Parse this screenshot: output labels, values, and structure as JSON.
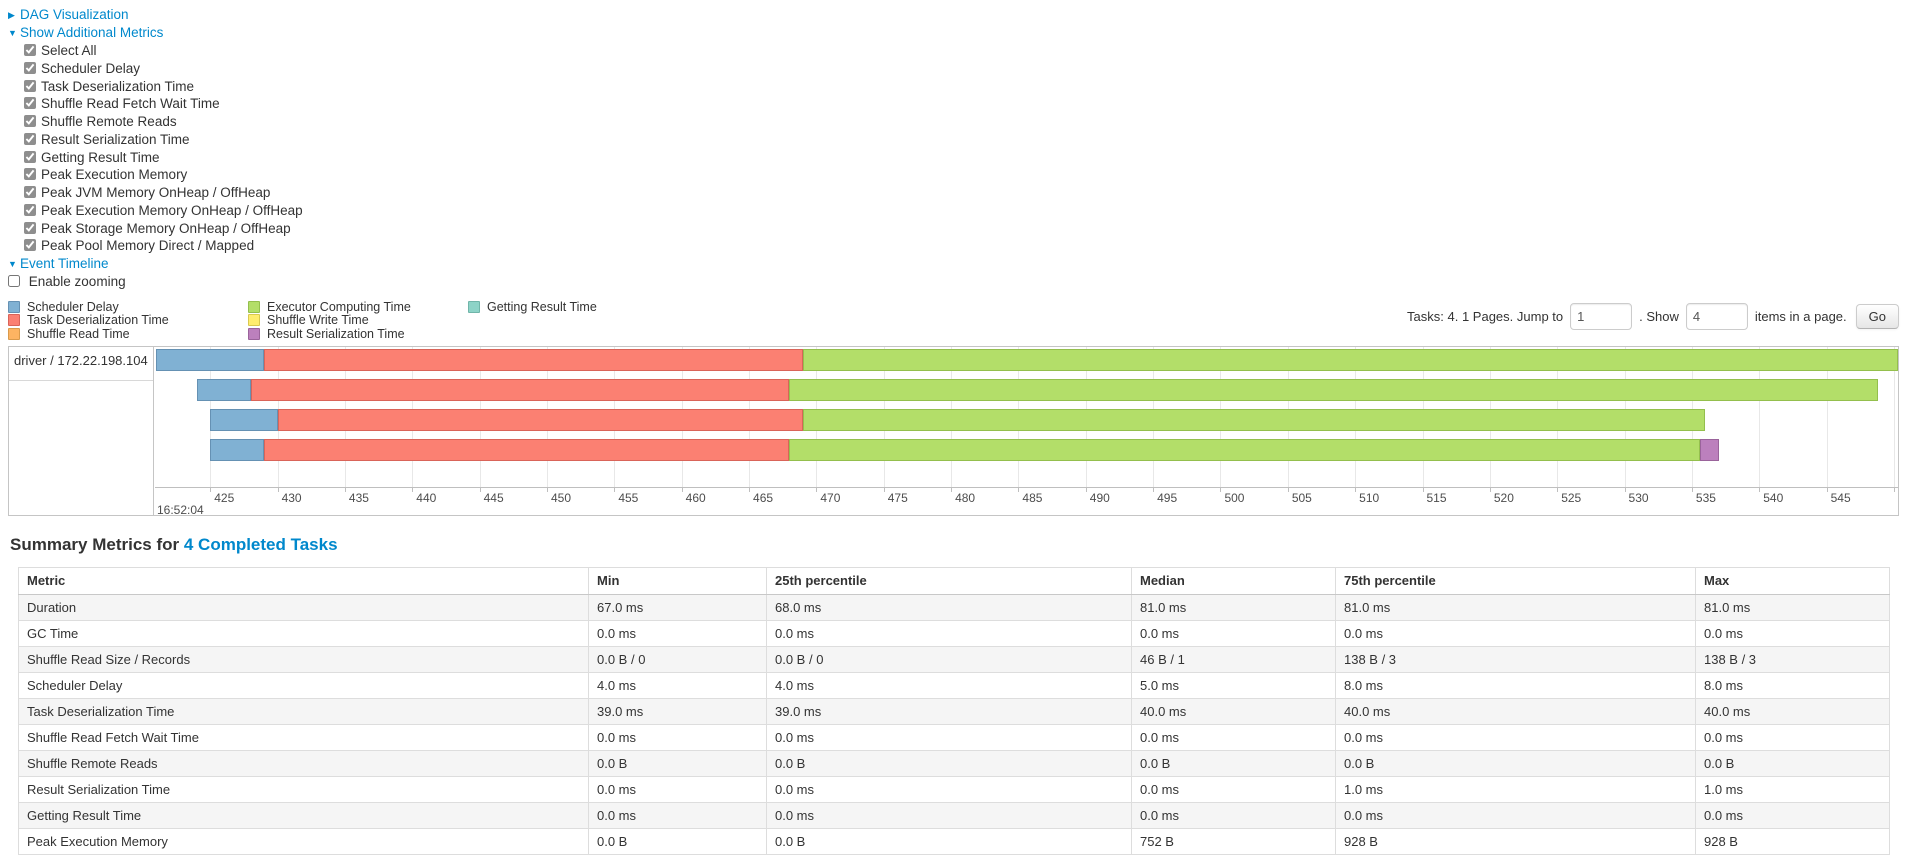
{
  "sections": {
    "dag_label": "DAG Visualization",
    "metrics_label": "Show Additional Metrics",
    "metric_checkboxes": [
      "Select All",
      "Scheduler Delay",
      "Task Deserialization Time",
      "Shuffle Read Fetch Wait Time",
      "Shuffle Remote Reads",
      "Result Serialization Time",
      "Getting Result Time",
      "Peak Execution Memory",
      "Peak JVM Memory OnHeap / OffHeap",
      "Peak Execution Memory OnHeap / OffHeap",
      "Peak Storage Memory OnHeap / OffHeap",
      "Peak Pool Memory Direct / Mapped"
    ],
    "timeline_label": "Event Timeline",
    "enable_zooming_label": "Enable zooming"
  },
  "pagination": {
    "tasks_label": "Tasks: 4. 1 Pages. Jump to",
    "jump_value": "1",
    "show_label": ". Show",
    "show_value": "4",
    "items_label": "items in a page.",
    "go_label": "Go"
  },
  "legend": {
    "columns": [
      [
        {
          "phase": "scheduler_delay",
          "label": "Scheduler Delay"
        },
        {
          "phase": "task_deserialization",
          "label": "Task Deserialization Time"
        },
        {
          "phase": "shuffle_read",
          "label": "Shuffle Read Time"
        }
      ],
      [
        {
          "phase": "executor_computing",
          "label": "Executor Computing Time"
        },
        {
          "phase": "shuffle_write",
          "label": "Shuffle Write Time"
        },
        {
          "phase": "result_serialization",
          "label": "Result Serialization Time"
        }
      ],
      [
        {
          "phase": "getting_result",
          "label": "Getting Result Time"
        }
      ]
    ]
  },
  "chart_data": {
    "type": "timeline",
    "title": "Event Timeline",
    "group_label": "driver / 172.22.198.104",
    "x_axis": {
      "min": 420.9,
      "max": 550.3,
      "tick_start": 425,
      "tick_step": 5,
      "tick_end": 550,
      "major_label": "16:52:04",
      "unit": "ms within second 16:52:04"
    },
    "colors": {
      "scheduler_delay": {
        "fill": "#80B1D3",
        "border": "#6591B3"
      },
      "task_deserialization": {
        "fill": "#FB8072",
        "border": "#D96459"
      },
      "shuffle_read": {
        "fill": "#FDB462",
        "border": "#D99A4B"
      },
      "executor_computing": {
        "fill": "#B3DE69",
        "border": "#94BF4D"
      },
      "shuffle_write": {
        "fill": "#FFED6F",
        "border": "#D9C950"
      },
      "result_serialization": {
        "fill": "#BC80BD",
        "border": "#9A639B"
      },
      "getting_result": {
        "fill": "#8DD3C7",
        "border": "#70B5A9"
      }
    },
    "tasks": [
      {
        "start": 421,
        "segments": [
          {
            "phase": "scheduler_delay",
            "end": 429
          },
          {
            "phase": "task_deserialization",
            "end": 469
          },
          {
            "phase": "executor_computing",
            "end": 550.3
          }
        ]
      },
      {
        "start": 424,
        "segments": [
          {
            "phase": "scheduler_delay",
            "end": 428
          },
          {
            "phase": "task_deserialization",
            "end": 468
          },
          {
            "phase": "executor_computing",
            "end": 548.8
          }
        ]
      },
      {
        "start": 425,
        "segments": [
          {
            "phase": "scheduler_delay",
            "end": 430
          },
          {
            "phase": "task_deserialization",
            "end": 469
          },
          {
            "phase": "executor_computing",
            "end": 536
          }
        ]
      },
      {
        "start": 425,
        "segments": [
          {
            "phase": "scheduler_delay",
            "end": 429
          },
          {
            "phase": "task_deserialization",
            "end": 468
          },
          {
            "phase": "executor_computing",
            "end": 535.6
          },
          {
            "phase": "result_serialization",
            "end": 537
          }
        ]
      }
    ]
  },
  "summary": {
    "heading": "Summary Metrics for",
    "link": "4 Completed Tasks",
    "table": {
      "headers": [
        "Metric",
        "Min",
        "25th percentile",
        "Median",
        "75th percentile",
        "Max"
      ],
      "rows": [
        [
          "Duration",
          "67.0 ms",
          "68.0 ms",
          "81.0 ms",
          "81.0 ms",
          "81.0 ms"
        ],
        [
          "GC Time",
          "0.0 ms",
          "0.0 ms",
          "0.0 ms",
          "0.0 ms",
          "0.0 ms"
        ],
        [
          "Shuffle Read Size / Records",
          "0.0 B / 0",
          "0.0 B / 0",
          "46 B / 1",
          "138 B / 3",
          "138 B / 3"
        ],
        [
          "Scheduler Delay",
          "4.0 ms",
          "4.0 ms",
          "5.0 ms",
          "8.0 ms",
          "8.0 ms"
        ],
        [
          "Task Deserialization Time",
          "39.0 ms",
          "39.0 ms",
          "40.0 ms",
          "40.0 ms",
          "40.0 ms"
        ],
        [
          "Shuffle Read Fetch Wait Time",
          "0.0 ms",
          "0.0 ms",
          "0.0 ms",
          "0.0 ms",
          "0.0 ms"
        ],
        [
          "Shuffle Remote Reads",
          "0.0 B",
          "0.0 B",
          "0.0 B",
          "0.0 B",
          "0.0 B"
        ],
        [
          "Result Serialization Time",
          "0.0 ms",
          "0.0 ms",
          "0.0 ms",
          "1.0 ms",
          "1.0 ms"
        ],
        [
          "Getting Result Time",
          "0.0 ms",
          "0.0 ms",
          "0.0 ms",
          "0.0 ms",
          "0.0 ms"
        ],
        [
          "Peak Execution Memory",
          "0.0 B",
          "0.0 B",
          "752 B",
          "928 B",
          "928 B"
        ]
      ]
    }
  }
}
